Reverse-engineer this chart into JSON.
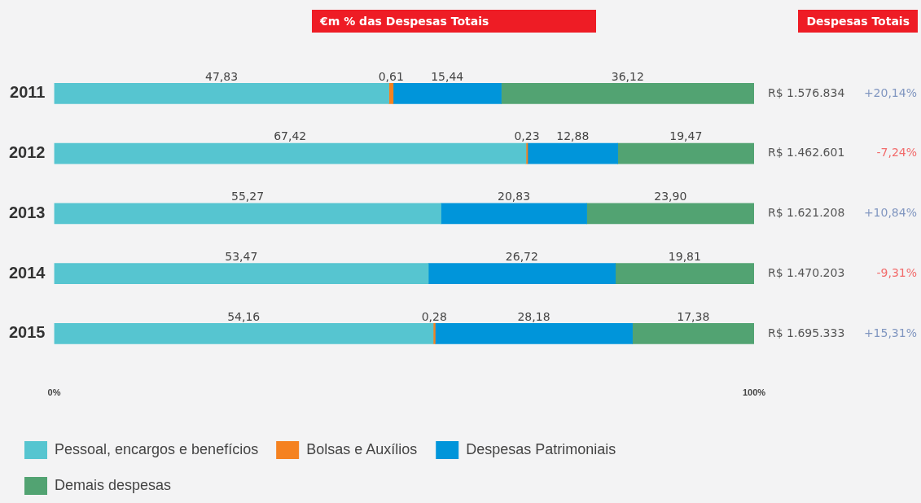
{
  "chart_data": {
    "type": "bar",
    "orientation": "horizontal",
    "stacked": true,
    "title": "€m % das Despesas Totais",
    "subtitle": "Despesas Totais",
    "categories": [
      "2011",
      "2012",
      "2013",
      "2014",
      "2015"
    ],
    "series": [
      {
        "name": "Pessoal, encargos e benefícios",
        "color": "#56c5d0",
        "values": [
          47.83,
          67.42,
          55.27,
          53.47,
          54.16
        ],
        "value_labels": [
          "47,83",
          "67,42",
          "55,27",
          "53,47",
          "54,16"
        ]
      },
      {
        "name": "Bolsas e Auxílios",
        "color": "#f58220",
        "values": [
          0.61,
          0.23,
          null,
          null,
          0.28
        ],
        "value_labels": [
          "0,61",
          "0,23",
          null,
          null,
          "0,28"
        ]
      },
      {
        "name": "Despesas Patrimoniais",
        "color": "#0095da",
        "values": [
          15.44,
          12.88,
          20.83,
          26.72,
          28.18
        ],
        "value_labels": [
          "15,44",
          "12,88",
          "20,83",
          "26,72",
          "28,18"
        ]
      },
      {
        "name": "Demais despesas",
        "color": "#52a372",
        "values": [
          36.12,
          19.47,
          23.9,
          19.81,
          17.38
        ],
        "value_labels": [
          "36,12",
          "19,47",
          "23,90",
          "19,81",
          "17,38"
        ]
      }
    ],
    "xlim": [
      0,
      100
    ],
    "xticks": [
      {
        "value": 0,
        "label": "0%"
      },
      {
        "value": 100,
        "label": "100%"
      }
    ],
    "grid": false,
    "legend": "bottom left",
    "annotations": [
      "R$ 1.576.834",
      "+20,14%",
      "R$ 1.462.601",
      "-7,24%",
      "R$ 1.621.208",
      "+10,84%",
      "R$ 1.470.203",
      "-9,31%",
      "R$ 1.695.333",
      "+15,31%"
    ]
  }
}
